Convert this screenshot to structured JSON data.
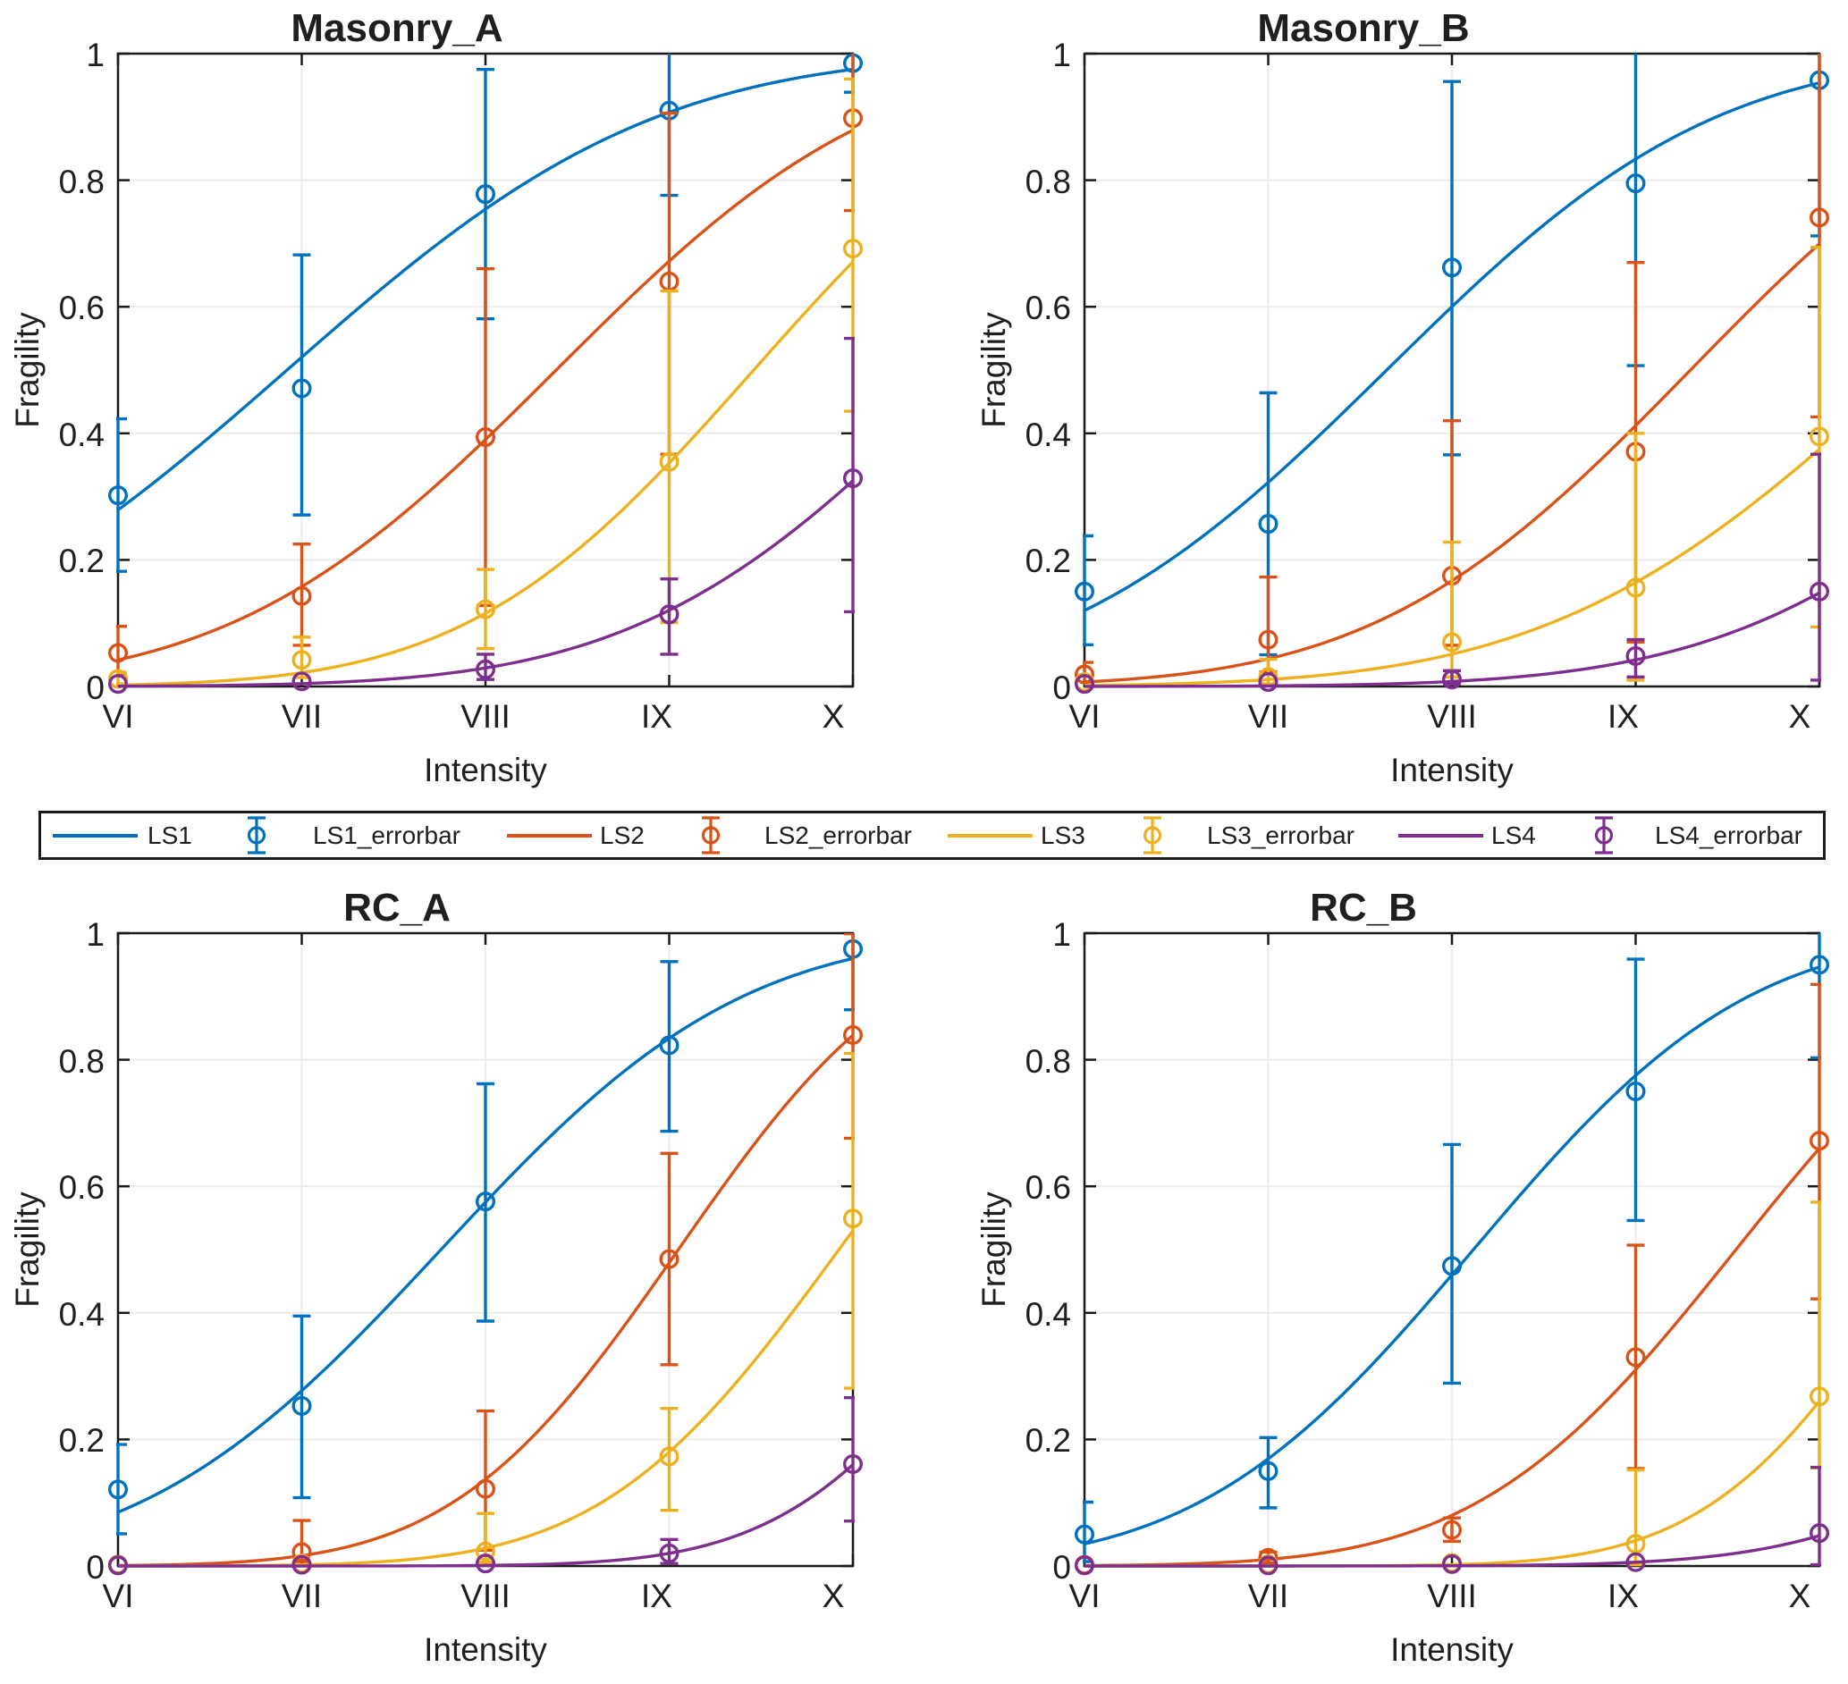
{
  "figure": {
    "background": "#ffffff",
    "axis_color": "#1a1a1a",
    "grid_color": "#ebebeb",
    "text_color": "#1f1f1f"
  },
  "legend": {
    "entries": [
      {
        "label": "LS1",
        "type": "line",
        "color": "#0072BD"
      },
      {
        "label": "LS1_errorbar",
        "type": "errorbar",
        "color": "#0072BD"
      },
      {
        "label": "LS2",
        "type": "line",
        "color": "#D95319"
      },
      {
        "label": "LS2_errorbar",
        "type": "errorbar",
        "color": "#D95319"
      },
      {
        "label": "LS3",
        "type": "line",
        "color": "#EDB120"
      },
      {
        "label": "LS3_errorbar",
        "type": "errorbar",
        "color": "#EDB120"
      },
      {
        "label": "LS4",
        "type": "line",
        "color": "#7E2F8E"
      },
      {
        "label": "LS4_errorbar",
        "type": "errorbar",
        "color": "#7E2F8E"
      }
    ]
  },
  "point_format": [
    "x",
    "y",
    "err_lo",
    "err_hi"
  ],
  "chart_data": [
    {
      "type": "line",
      "title": "Masonry_A",
      "xlabel": "Intensity",
      "ylabel": "Fragility",
      "x_ticklabels": [
        "VI",
        "VII",
        "VIII",
        "IX",
        "X"
      ],
      "x_values": [
        6,
        7,
        8,
        9,
        10
      ],
      "xlim": [
        6,
        10
      ],
      "ylim": [
        0,
        1
      ],
      "y_ticks": [
        0,
        0.2,
        0.4,
        0.6,
        0.8,
        1
      ],
      "y_ticklabels": [
        "0",
        "0.2",
        "0.4",
        "0.6",
        "0.8",
        "1"
      ],
      "grid": true,
      "series": [
        {
          "name": "LS1",
          "color": "#0072BD",
          "curve_fit": {
            "mu": 6.92,
            "sigma": 1.57
          },
          "points": [
            [
              6,
              0.302,
              0.182,
              0.423
            ],
            [
              7,
              0.471,
              0.271,
              0.682
            ],
            [
              8,
              0.778,
              0.581,
              0.975
            ],
            [
              9,
              0.91,
              0.776,
              1.05
            ],
            [
              10,
              0.985,
              0.939,
              1.04
            ]
          ]
        },
        {
          "name": "LS2",
          "color": "#D95319",
          "curve_fit": {
            "mu": 8.385,
            "sigma": 1.38
          },
          "points": [
            [
              6,
              0.053,
              0.019,
              0.095
            ],
            [
              7,
              0.143,
              0.065,
              0.225
            ],
            [
              8,
              0.394,
              0.128,
              0.66
            ],
            [
              9,
              0.64,
              0.367,
              0.906
            ],
            [
              10,
              0.898,
              0.752,
              1.04
            ]
          ]
        },
        {
          "name": "LS3",
          "color": "#EDB120",
          "curve_fit": {
            "mu": 9.46,
            "sigma": 1.22
          },
          "points": [
            [
              6,
              0.012,
              0.004,
              0.022
            ],
            [
              7,
              0.042,
              0.014,
              0.078
            ],
            [
              8,
              0.122,
              0.06,
              0.185
            ],
            [
              9,
              0.355,
              0.101,
              0.625
            ],
            [
              10,
              0.692,
              0.435,
              0.96
            ]
          ]
        },
        {
          "name": "LS4",
          "color": "#7E2F8E",
          "curve_fit": {
            "mu": 10.63,
            "sigma": 1.39
          },
          "points": [
            [
              6,
              0.004,
              null,
              null
            ],
            [
              7,
              0.008,
              null,
              null
            ],
            [
              8,
              0.027,
              0.011,
              0.051
            ],
            [
              9,
              0.114,
              0.051,
              0.17
            ],
            [
              10,
              0.329,
              0.118,
              0.55
            ]
          ]
        }
      ]
    },
    {
      "type": "line",
      "title": "Masonry_B",
      "xlabel": "Intensity",
      "ylabel": "Fragility",
      "x_ticklabels": [
        "VI",
        "VII",
        "VIII",
        "IX",
        "X"
      ],
      "x_values": [
        6,
        7,
        8,
        9,
        10
      ],
      "xlim": [
        6,
        10
      ],
      "ylim": [
        0,
        1
      ],
      "y_ticks": [
        0,
        0.2,
        0.4,
        0.6,
        0.8,
        1
      ],
      "y_ticklabels": [
        "0",
        "0.2",
        "0.4",
        "0.6",
        "0.8",
        "1"
      ],
      "grid": true,
      "series": [
        {
          "name": "LS1",
          "color": "#0072BD",
          "curve_fit": {
            "mu": 7.645,
            "sigma": 1.4
          },
          "points": [
            [
              6,
              0.15,
              0.066,
              0.238
            ],
            [
              7,
              0.257,
              0.05,
              0.464
            ],
            [
              8,
              0.662,
              0.366,
              0.956
            ],
            [
              9,
              0.795,
              0.507,
              1.08
            ],
            [
              10,
              0.958,
              0.712,
              1.2
            ]
          ]
        },
        {
          "name": "LS2",
          "color": "#D95319",
          "curve_fit": {
            "mu": 9.298,
            "sigma": 1.344
          },
          "points": [
            [
              6,
              0.019,
              0.007,
              0.038
            ],
            [
              7,
              0.074,
              0.023,
              0.173
            ],
            [
              8,
              0.175,
              0.065,
              0.42
            ],
            [
              9,
              0.371,
              0.07,
              0.67
            ],
            [
              10,
              0.741,
              0.426,
              1.06
            ]
          ]
        },
        {
          "name": "LS3",
          "color": "#EDB120",
          "curve_fit": {
            "mu": 10.485,
            "sigma": 1.52
          },
          "points": [
            [
              6,
              0.007,
              null,
              null
            ],
            [
              7,
              0.015,
              0.004,
              0.043
            ],
            [
              8,
              0.07,
              0.015,
              0.228
            ],
            [
              9,
              0.156,
              0.01,
              0.4
            ],
            [
              10,
              0.395,
              0.094,
              0.694
            ]
          ]
        },
        {
          "name": "LS4",
          "color": "#7E2F8E",
          "curve_fit": {
            "mu": 11.53,
            "sigma": 1.464
          },
          "points": [
            [
              6,
              0.004,
              null,
              null
            ],
            [
              7,
              0.007,
              null,
              null
            ],
            [
              8,
              0.011,
              0.004,
              0.025
            ],
            [
              9,
              0.048,
              0.015,
              0.074
            ],
            [
              10,
              0.15,
              0.01,
              0.367
            ]
          ]
        }
      ]
    },
    {
      "type": "line",
      "title": "RC_A",
      "xlabel": "Intensity",
      "ylabel": "Fragility",
      "x_ticklabels": [
        "VI",
        "VII",
        "VIII",
        "IX",
        "X"
      ],
      "x_values": [
        6,
        7,
        8,
        9,
        10
      ],
      "xlim": [
        6,
        10
      ],
      "ylim": [
        0,
        1
      ],
      "y_ticks": [
        0,
        0.2,
        0.4,
        0.6,
        0.8,
        1
      ],
      "y_ticklabels": [
        "0",
        "0.2",
        "0.4",
        "0.6",
        "0.8",
        "1"
      ],
      "grid": true,
      "series": [
        {
          "name": "LS1",
          "color": "#0072BD",
          "curve_fit": {
            "mu": 7.758,
            "sigma": 1.281
          },
          "points": [
            [
              6,
              0.121,
              0.051,
              0.192
            ],
            [
              7,
              0.253,
              0.108,
              0.395
            ],
            [
              8,
              0.576,
              0.387,
              0.762
            ],
            [
              9,
              0.823,
              0.687,
              0.955
            ],
            [
              10,
              0.975,
              0.879,
              1.07
            ]
          ]
        },
        {
          "name": "LS2",
          "color": "#D95319",
          "curve_fit": {
            "mu": 9.05,
            "sigma": 0.96
          },
          "points": [
            [
              6,
              0.002,
              null,
              null
            ],
            [
              7,
              0.022,
              0.007,
              0.072
            ],
            [
              8,
              0.122,
              0.025,
              0.245
            ],
            [
              9,
              0.485,
              0.318,
              0.652
            ],
            [
              10,
              0.839,
              0.676,
              0.999
            ]
          ]
        },
        {
          "name": "LS3",
          "color": "#EDB120",
          "curve_fit": {
            "mu": 9.924,
            "sigma": 1.01
          },
          "points": [
            [
              6,
              0.001,
              null,
              null
            ],
            [
              7,
              0.004,
              null,
              null
            ],
            [
              8,
              0.023,
              0.006,
              0.083
            ],
            [
              9,
              0.173,
              0.088,
              0.249
            ],
            [
              10,
              0.549,
              0.281,
              0.81
            ]
          ]
        },
        {
          "name": "LS4",
          "color": "#7E2F8E",
          "curve_fit": {
            "mu": 10.937,
            "sigma": 0.943
          },
          "points": [
            [
              6,
              0.001,
              null,
              null
            ],
            [
              7,
              0.002,
              null,
              null
            ],
            [
              8,
              0.004,
              null,
              null
            ],
            [
              9,
              0.02,
              0.004,
              0.042
            ],
            [
              10,
              0.161,
              0.071,
              0.266
            ]
          ]
        }
      ]
    },
    {
      "type": "line",
      "title": "RC_B",
      "xlabel": "Intensity",
      "ylabel": "Fragility",
      "x_ticklabels": [
        "VI",
        "VII",
        "VIII",
        "IX",
        "X"
      ],
      "x_values": [
        6,
        7,
        8,
        9,
        10
      ],
      "xlim": [
        6,
        10
      ],
      "ylim": [
        0,
        1
      ],
      "y_ticks": [
        0,
        0.2,
        0.4,
        0.6,
        0.8,
        1
      ],
      "y_ticklabels": [
        "0",
        "0.2",
        "0.4",
        "0.6",
        "0.8",
        "1"
      ],
      "grid": true,
      "series": [
        {
          "name": "LS1",
          "color": "#0072BD",
          "curve_fit": {
            "mu": 8.117,
            "sigma": 1.168
          },
          "points": [
            [
              6,
              0.05,
              0.007,
              0.101
            ],
            [
              7,
              0.15,
              0.092,
              0.203
            ],
            [
              8,
              0.474,
              0.289,
              0.666
            ],
            [
              9,
              0.75,
              0.546,
              0.959
            ],
            [
              10,
              0.95,
              0.803,
              1.1
            ]
          ]
        },
        {
          "name": "LS2",
          "color": "#D95319",
          "curve_fit": {
            "mu": 9.546,
            "sigma": 1.101
          },
          "points": [
            [
              6,
              0.002,
              null,
              null
            ],
            [
              7,
              0.013,
              0.005,
              0.022
            ],
            [
              8,
              0.057,
              0.039,
              0.076
            ],
            [
              9,
              0.33,
              0.154,
              0.507
            ],
            [
              10,
              0.672,
              0.422,
              0.919
            ]
          ]
        },
        {
          "name": "LS3",
          "color": "#EDB120",
          "curve_fit": {
            "mu": 10.58,
            "sigma": 0.903
          },
          "points": [
            [
              6,
              0.001,
              null,
              null
            ],
            [
              7,
              0.003,
              null,
              null
            ],
            [
              8,
              0.005,
              null,
              null
            ],
            [
              9,
              0.035,
              0.002,
              0.152
            ],
            [
              10,
              0.268,
              0.155,
              0.575
            ]
          ]
        },
        {
          "name": "LS4",
          "color": "#7E2F8E",
          "curve_fit": {
            "mu": 11.966,
            "sigma": 1.181
          },
          "points": [
            [
              6,
              0.001,
              null,
              null
            ],
            [
              7,
              0.001,
              null,
              null
            ],
            [
              8,
              0.003,
              null,
              null
            ],
            [
              9,
              0.006,
              null,
              null
            ],
            [
              10,
              0.052,
              0.002,
              0.156
            ]
          ]
        }
      ]
    }
  ]
}
